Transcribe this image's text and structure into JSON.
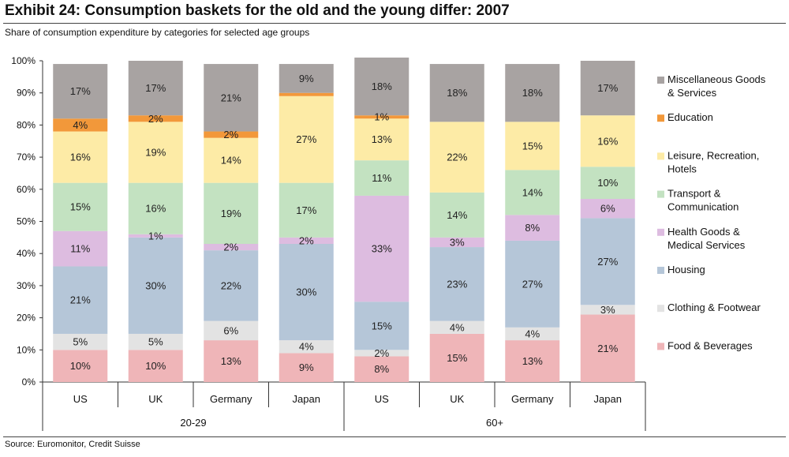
{
  "title": "Exhibit 24: Consumption baskets for the old and the young differ: 2007",
  "subtitle": "Share of consumption expenditure by categories for selected age groups",
  "source": "Source: Euromonitor, Credit Suisse",
  "chart_data": {
    "type": "bar",
    "stacked": true,
    "ylim": [
      0,
      100
    ],
    "y_ticks": [
      "0%",
      "10%",
      "20%",
      "30%",
      "40%",
      "50%",
      "60%",
      "70%",
      "80%",
      "90%",
      "100%"
    ],
    "categories": [
      "US",
      "UK",
      "Germany",
      "Japan",
      "US",
      "UK",
      "Germany",
      "Japan"
    ],
    "groups": [
      {
        "label": "20-29",
        "categories": [
          "US",
          "UK",
          "Germany",
          "Japan"
        ]
      },
      {
        "label": "60+",
        "categories": [
          "US",
          "UK",
          "Germany",
          "Japan"
        ]
      }
    ],
    "legend_position": "right",
    "series": [
      {
        "name": "Food & Beverages",
        "color": "#EFB5B8",
        "values": [
          10,
          10,
          13,
          9,
          8,
          15,
          13,
          21
        ]
      },
      {
        "name": "Clothing & Footwear",
        "color": "#E3E3E3",
        "values": [
          5,
          5,
          6,
          4,
          2,
          4,
          4,
          3
        ]
      },
      {
        "name": "Housing",
        "color": "#B5C6D8",
        "values": [
          21,
          30,
          22,
          30,
          15,
          23,
          27,
          27
        ]
      },
      {
        "name": "Health Goods & Medical Services",
        "color": "#DDBCE0",
        "values": [
          11,
          1,
          2,
          2,
          33,
          3,
          8,
          6
        ]
      },
      {
        "name": "Transport & Communication",
        "color": "#C3E2C1",
        "values": [
          15,
          16,
          19,
          17,
          11,
          14,
          14,
          10
        ]
      },
      {
        "name": "Leisure, Recreation, Hotels",
        "color": "#FDEBA6",
        "values": [
          16,
          19,
          14,
          27,
          13,
          22,
          15,
          16
        ]
      },
      {
        "name": "Education",
        "color": "#F2983A",
        "values": [
          4,
          2,
          2,
          1,
          1,
          0,
          0,
          0
        ]
      },
      {
        "name": "Miscellaneous Goods & Services",
        "color": "#A8A3A2",
        "values": [
          17,
          17,
          21,
          9,
          18,
          18,
          18,
          17
        ]
      }
    ],
    "data_labels": [
      [
        "10%",
        "10%",
        "13%",
        "9%",
        "8%",
        "15%",
        "13%",
        "21%"
      ],
      [
        "5%",
        "5%",
        "6%",
        "4%",
        "2%",
        "4%",
        "4%",
        "3%"
      ],
      [
        "21%",
        "30%",
        "22%",
        "30%",
        "15%",
        "23%",
        "27%",
        "27%"
      ],
      [
        "11%",
        "1%",
        "2%",
        "2%",
        "33%",
        "3%",
        "8%",
        "6%"
      ],
      [
        "15%",
        "16%",
        "19%",
        "17%",
        "11%",
        "14%",
        "14%",
        "10%"
      ],
      [
        "16%",
        "19%",
        "14%",
        "27%",
        "13%",
        "22%",
        "15%",
        "16%"
      ],
      [
        "4%",
        "2%",
        "2%",
        "",
        "1%",
        "",
        "",
        ""
      ],
      [
        "17%",
        "17%",
        "21%",
        "9%",
        "18%",
        "18%",
        "18%",
        "17%"
      ]
    ],
    "legend_lines": [
      [
        "Food & Beverages"
      ],
      [
        "Clothing & Footwear"
      ],
      [
        "Housing"
      ],
      [
        "Health Goods &",
        "Medical Services"
      ],
      [
        "Transport &",
        "Communication"
      ],
      [
        "Leisure, Recreation,",
        "Hotels"
      ],
      [
        "Education"
      ],
      [
        "Miscellaneous Goods",
        "& Services"
      ]
    ]
  }
}
